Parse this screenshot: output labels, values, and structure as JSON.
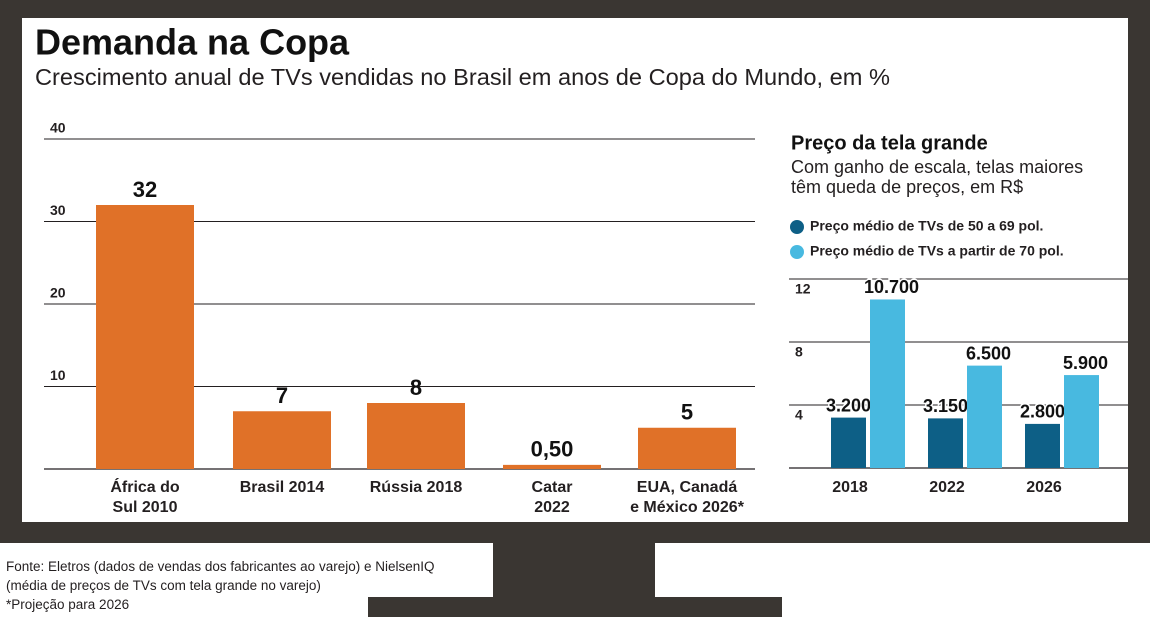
{
  "header": {
    "title": "Demanda na Copa",
    "subtitle": "Crescimento anual de TVs vendidas no Brasil em anos de Copa do Mundo, em %"
  },
  "chart_data": [
    {
      "type": "bar",
      "categories": [
        "África do\nSul 2010",
        "Brasil 2014",
        "Rússia 2018",
        "Catar\n2022",
        "EUA, Canadá\ne México 2026*"
      ],
      "values": [
        32,
        7,
        8,
        0.5,
        5
      ],
      "value_labels": [
        "32",
        "7",
        "8",
        "0,50",
        "5"
      ],
      "color": "#e07128",
      "ylim": [
        0,
        40
      ],
      "yticks": [
        10,
        20,
        30,
        40
      ],
      "grid": true
    },
    {
      "type": "grouped_bar",
      "title": "Preço da tela grande",
      "subtitle": "Com ganho de escala, telas maiores\ntêm queda de preços, em R$",
      "categories": [
        "2018",
        "2022",
        "2026"
      ],
      "series": [
        {
          "name": "Preço médio de TVs de 50 a 69 pol.",
          "color": "#0d5f86",
          "values": [
            3.2,
            3.15,
            2.8
          ],
          "value_labels": [
            "3.200",
            "3.150",
            "2.800"
          ]
        },
        {
          "name": "Preço médio de TVs a partir de 70 pol.",
          "color": "#48b9e0",
          "values": [
            10.7,
            6.5,
            5.9
          ],
          "value_labels": [
            "10.700",
            "6.500",
            "5.900"
          ]
        }
      ],
      "ylim": [
        0,
        12
      ],
      "yticks": [
        4,
        8,
        12
      ],
      "grid": true
    }
  ],
  "footer": {
    "source": "Fonte: Eletros (dados de vendas dos fabricantes ao varejo) e NielsenIQ\n(média de preços de TVs com tela grande no varejo)",
    "note": "*Projeção para 2026"
  }
}
